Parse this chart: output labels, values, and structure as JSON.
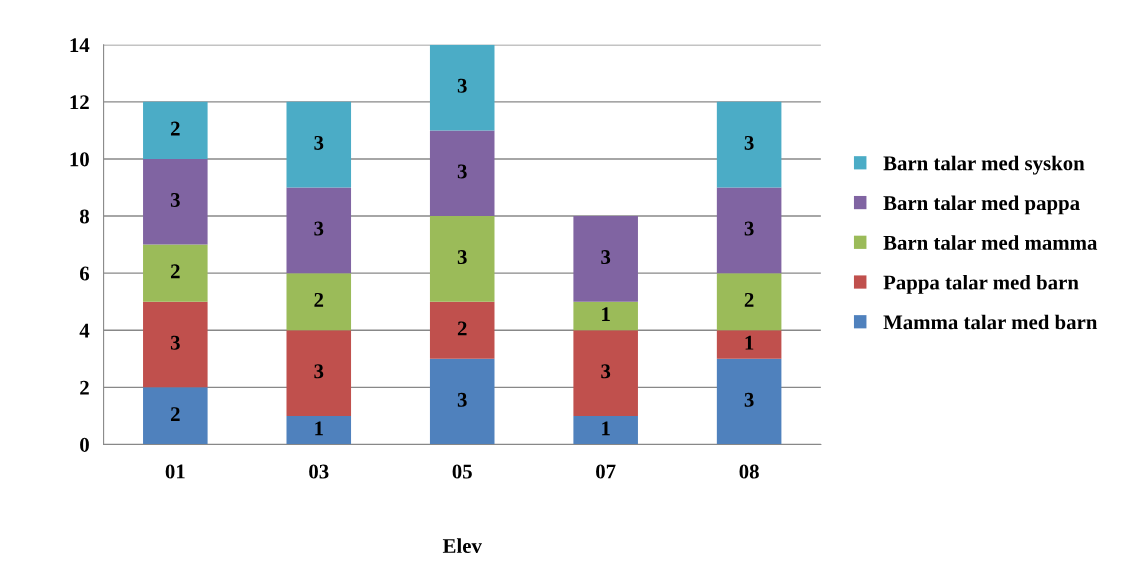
{
  "chart_data": {
    "type": "bar",
    "stacked": true,
    "xlabel": "Elev",
    "categories": [
      "01",
      "03",
      "05",
      "07",
      "08"
    ],
    "series": [
      {
        "name": "Mamma talar med barn",
        "color": "#4f81bd",
        "values": [
          2,
          1,
          3,
          1,
          3
        ]
      },
      {
        "name": "Pappa talar med barn",
        "color": "#c0504d",
        "values": [
          3,
          3,
          2,
          3,
          1
        ]
      },
      {
        "name": "Barn talar med mamma",
        "color": "#9bbb59",
        "values": [
          2,
          2,
          3,
          1,
          2
        ]
      },
      {
        "name": "Barn talar med pappa",
        "color": "#8064a2",
        "values": [
          3,
          3,
          3,
          3,
          3
        ]
      },
      {
        "name": "Barn talar med syskon",
        "color": "#4bacc6",
        "values": [
          2,
          3,
          3,
          null,
          3
        ]
      }
    ],
    "ylim": [
      0,
      14
    ],
    "yticks": [
      0,
      2,
      4,
      6,
      8,
      10,
      12,
      14
    ],
    "grid": "y",
    "legend": "right",
    "data_labels": true
  }
}
